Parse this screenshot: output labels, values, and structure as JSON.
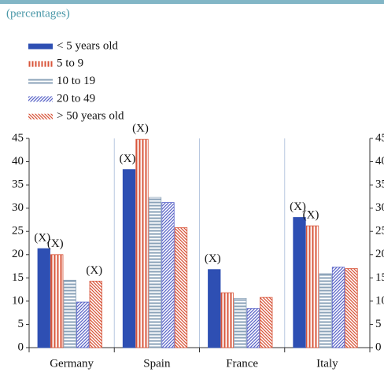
{
  "chart_data": {
    "type": "bar",
    "subtitle": "(percentages)",
    "categories": [
      "Germany",
      "Spain",
      "France",
      "Italy"
    ],
    "series": [
      {
        "name": "< 5 years old",
        "color": "#2e4fb3",
        "pattern": "solid",
        "values": [
          21.3,
          38.3,
          16.8,
          28
        ],
        "value_labels": [
          "(X)",
          "(X)",
          "(X)",
          "(X)"
        ]
      },
      {
        "name": "5 to 9",
        "color": "#d8553a",
        "pattern": "vertical",
        "values": [
          20,
          44.8,
          11.8,
          26.2
        ],
        "value_labels": [
          "(X)",
          "(X)",
          null,
          "(X)"
        ]
      },
      {
        "name": "10 to 19",
        "color": "#8aa2b8",
        "pattern": "horizontal",
        "values": [
          14.5,
          32.3,
          10.6,
          15.9
        ],
        "value_labels": [
          null,
          null,
          null,
          null
        ]
      },
      {
        "name": "20 to 49",
        "color": "#5a64c8",
        "pattern": "diagonal",
        "values": [
          9.8,
          31.2,
          8.4,
          17.3
        ],
        "value_labels": [
          null,
          null,
          null,
          null
        ]
      },
      {
        "name": "> 50 years old",
        "color": "#d8553a",
        "pattern": "antidiagonal",
        "values": [
          14.3,
          25.8,
          10.8,
          17
        ],
        "value_labels": [
          "(X)",
          null,
          null,
          null
        ]
      }
    ],
    "ylim": [
      0,
      45
    ],
    "yticks": [
      0,
      5,
      10,
      15,
      20,
      25,
      30,
      35,
      40,
      45
    ],
    "right_axis": true
  }
}
